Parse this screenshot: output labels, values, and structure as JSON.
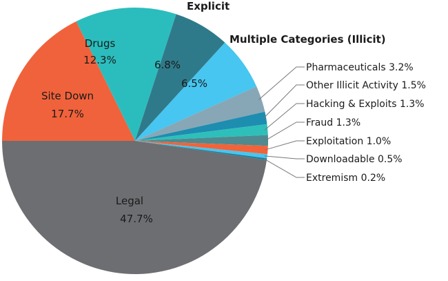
{
  "chart_data": {
    "type": "pie",
    "start": "9 o'clock, clockwise",
    "slices": [
      {
        "label": "Site Down",
        "value": 17.7,
        "display": "17.7%",
        "color": "#f0623b",
        "label_position": "inside"
      },
      {
        "label": "Drugs",
        "value": 12.3,
        "display": "12.3%",
        "color": "#2bbdbd",
        "label_position": "inside"
      },
      {
        "label": "Explicit",
        "value": 6.8,
        "display": "6.8%",
        "color": "#2f7a8a",
        "label_position": "outside-top"
      },
      {
        "label": "Multiple Categories (Illicit)",
        "value": 6.5,
        "display": "6.5%",
        "color": "#46c6f0",
        "label_position": "outside-top"
      },
      {
        "label": "Pharmaceuticals",
        "value": 3.2,
        "display": "3.2%",
        "color": "#87a7b6",
        "label_position": "leader"
      },
      {
        "label": "Other Illicit Activity",
        "value": 1.5,
        "display": "1.5%",
        "color": "#1d8db0",
        "label_position": "leader"
      },
      {
        "label": "Hacking & Exploits",
        "value": 1.3,
        "display": "1.3%",
        "color": "#2ebfbb",
        "label_position": "leader"
      },
      {
        "label": "Fraud",
        "value": 1.3,
        "display": "1.3%",
        "color": "#4e8a8f",
        "label_position": "leader"
      },
      {
        "label": "Exploitation",
        "value": 1.0,
        "display": "1.0%",
        "color": "#f26339",
        "label_position": "leader"
      },
      {
        "label": "Downloadable",
        "value": 0.5,
        "display": "0.5%",
        "color": "#48c5ee",
        "label_position": "leader"
      },
      {
        "label": "Extremism",
        "value": 0.2,
        "display": "0.2%",
        "color": "#1a7fa0",
        "label_position": "leader"
      },
      {
        "label": "Legal",
        "value": 47.7,
        "display": "47.7%",
        "color": "#6d6e71",
        "label_position": "inside"
      }
    ]
  }
}
